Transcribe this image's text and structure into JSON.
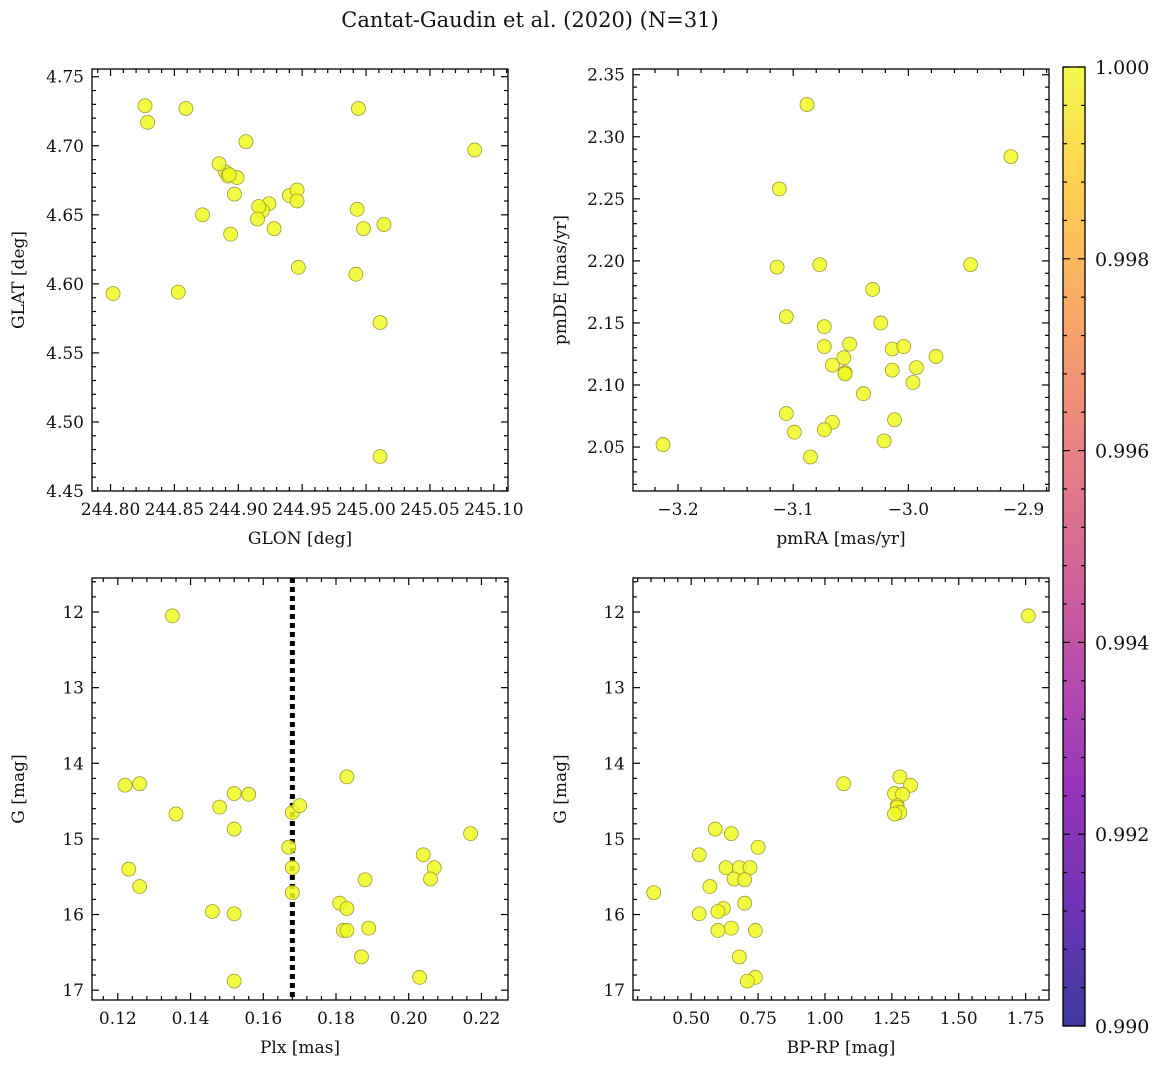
{
  "title": "Cantat-Gaudin et al. (2020) (N=31)",
  "colors": {
    "point_fill": "#f0f921",
    "point_edge": "#a09a3a",
    "axis": "#000000",
    "vline": "#000000"
  },
  "colorbar": {
    "colormap": "plasma",
    "range": [
      0.99,
      1.0
    ],
    "ticks": [
      0.99,
      0.992,
      0.994,
      0.996,
      0.998,
      1.0
    ],
    "tick_labels": [
      "0.990",
      "0.992",
      "0.994",
      "0.996",
      "0.998",
      "1.000"
    ]
  },
  "chart_data": [
    {
      "type": "scatter",
      "xlabel": "GLON [deg]",
      "ylabel": "GLAT [deg]",
      "xlim": [
        244.7855,
        245.1111
      ],
      "ylim": [
        4.45,
        4.7556
      ],
      "xticks": [
        244.8,
        244.85,
        244.9,
        244.95,
        245.0,
        245.05,
        245.1
      ],
      "xtick_labels": [
        "244.80",
        "244.85",
        "244.90",
        "244.95",
        "245.00",
        "245.05",
        "245.10"
      ],
      "yticks": [
        4.45,
        4.5,
        4.55,
        4.6,
        4.65,
        4.7,
        4.75
      ],
      "ytick_labels": [
        "4.45",
        "4.50",
        "4.55",
        "4.60",
        "4.65",
        "4.70",
        "4.75"
      ],
      "x": [
        244.827,
        244.829,
        244.859,
        244.994,
        244.906,
        244.89,
        244.885,
        244.892,
        244.899,
        244.897,
        244.872,
        244.94,
        244.946,
        244.946,
        244.924,
        244.919,
        244.916,
        244.915,
        244.928,
        244.894,
        244.993,
        244.998,
        245.014,
        245.085,
        244.947,
        244.992,
        245.011,
        244.853,
        244.802,
        245.011,
        244.893
      ],
      "y": [
        4.729,
        4.717,
        4.727,
        4.727,
        4.703,
        4.681,
        4.687,
        4.678,
        4.677,
        4.665,
        4.65,
        4.664,
        4.668,
        4.66,
        4.658,
        4.653,
        4.656,
        4.647,
        4.64,
        4.636,
        4.654,
        4.64,
        4.643,
        4.697,
        4.612,
        4.607,
        4.572,
        4.594,
        4.593,
        4.475,
        4.679
      ],
      "vline": null
    },
    {
      "type": "scatter",
      "xlabel": "pmRA [mas/yr]",
      "ylabel": "pmDE [mas/yr]",
      "xlim": [
        -3.2391,
        -2.8779
      ],
      "ylim": [
        2.0146,
        2.3546
      ],
      "xticks": [
        -3.2,
        -3.1,
        -3.0,
        -2.9
      ],
      "xtick_labels": [
        "−3.2",
        "−3.1",
        "−3.0",
        "−2.9"
      ],
      "yticks": [
        2.05,
        2.1,
        2.15,
        2.2,
        2.25,
        2.3,
        2.35
      ],
      "ytick_labels": [
        "2.05",
        "2.10",
        "2.15",
        "2.20",
        "2.25",
        "2.30",
        "2.35"
      ],
      "x": [
        -3.088,
        -3.112,
        -3.114,
        -3.077,
        -2.946,
        -2.911,
        -3.031,
        -3.106,
        -3.024,
        -3.073,
        -3.073,
        -3.051,
        -3.066,
        -3.055,
        -3.056,
        -3.014,
        -3.004,
        -3.014,
        -2.976,
        -2.993,
        -2.996,
        -3.039,
        -3.106,
        -3.066,
        -3.073,
        -3.099,
        -3.012,
        -3.021,
        -3.085,
        -3.213,
        -3.055
      ],
      "y": [
        2.326,
        2.258,
        2.195,
        2.197,
        2.197,
        2.284,
        2.177,
        2.155,
        2.15,
        2.147,
        2.131,
        2.133,
        2.116,
        2.11,
        2.122,
        2.129,
        2.131,
        2.112,
        2.123,
        2.114,
        2.102,
        2.093,
        2.077,
        2.07,
        2.064,
        2.062,
        2.072,
        2.055,
        2.042,
        2.052,
        2.109
      ],
      "vline": null
    },
    {
      "type": "scatter",
      "xlabel": "Plx [mas]",
      "ylabel": "G [mag]",
      "xlim": [
        0.1129,
        0.2273
      ],
      "ylim": [
        17.13,
        11.55
      ],
      "xticks": [
        0.12,
        0.14,
        0.16,
        0.18,
        0.2,
        0.22
      ],
      "xtick_labels": [
        "0.12",
        "0.14",
        "0.16",
        "0.18",
        "0.20",
        "0.22"
      ],
      "yticks": [
        12,
        13,
        14,
        15,
        16,
        17
      ],
      "ytick_labels": [
        "12",
        "13",
        "14",
        "15",
        "16",
        "17"
      ],
      "x": [
        0.135,
        0.122,
        0.126,
        0.136,
        0.148,
        0.152,
        0.156,
        0.152,
        0.168,
        0.17,
        0.183,
        0.168,
        0.167,
        0.168,
        0.123,
        0.126,
        0.146,
        0.152,
        0.181,
        0.183,
        0.188,
        0.182,
        0.183,
        0.189,
        0.187,
        0.152,
        0.203,
        0.204,
        0.207,
        0.206,
        0.217
      ],
      "y": [
        12.05,
        14.29,
        14.27,
        14.67,
        14.58,
        14.4,
        14.41,
        14.87,
        14.65,
        14.56,
        14.18,
        15.38,
        15.11,
        15.71,
        15.4,
        15.63,
        15.96,
        15.99,
        15.85,
        15.92,
        15.54,
        16.21,
        16.21,
        16.18,
        16.56,
        16.88,
        16.83,
        15.21,
        15.38,
        15.53,
        14.93
      ],
      "vline": 0.168
    },
    {
      "type": "scatter",
      "xlabel": "BP-RP [mag]",
      "ylabel": "G [mag]",
      "xlim": [
        0.2825,
        1.8374
      ],
      "ylim": [
        17.13,
        11.55
      ],
      "xticks": [
        0.5,
        0.75,
        1.0,
        1.25,
        1.5,
        1.75
      ],
      "xtick_labels": [
        "0.50",
        "0.75",
        "1.00",
        "1.25",
        "1.50",
        "1.75"
      ],
      "yticks": [
        12,
        13,
        14,
        15,
        16,
        17
      ],
      "ytick_labels": [
        "12",
        "13",
        "14",
        "15",
        "16",
        "17"
      ],
      "x": [
        1.76,
        1.07,
        1.28,
        1.32,
        1.26,
        1.29,
        1.27,
        1.27,
        1.28,
        1.26,
        0.59,
        0.65,
        0.75,
        0.53,
        0.63,
        0.68,
        0.72,
        0.66,
        0.7,
        0.57,
        0.7,
        0.62,
        0.6,
        0.53,
        0.65,
        0.74,
        0.6,
        0.68,
        0.74,
        0.71,
        0.36
      ],
      "y": [
        12.05,
        14.27,
        14.18,
        14.29,
        14.4,
        14.41,
        14.56,
        14.58,
        14.65,
        14.67,
        14.87,
        14.93,
        15.11,
        15.21,
        15.38,
        15.38,
        15.38,
        15.53,
        15.54,
        15.63,
        15.85,
        15.92,
        15.96,
        15.99,
        16.18,
        16.21,
        16.21,
        16.56,
        16.83,
        16.88,
        15.71
      ],
      "vline": null
    }
  ]
}
